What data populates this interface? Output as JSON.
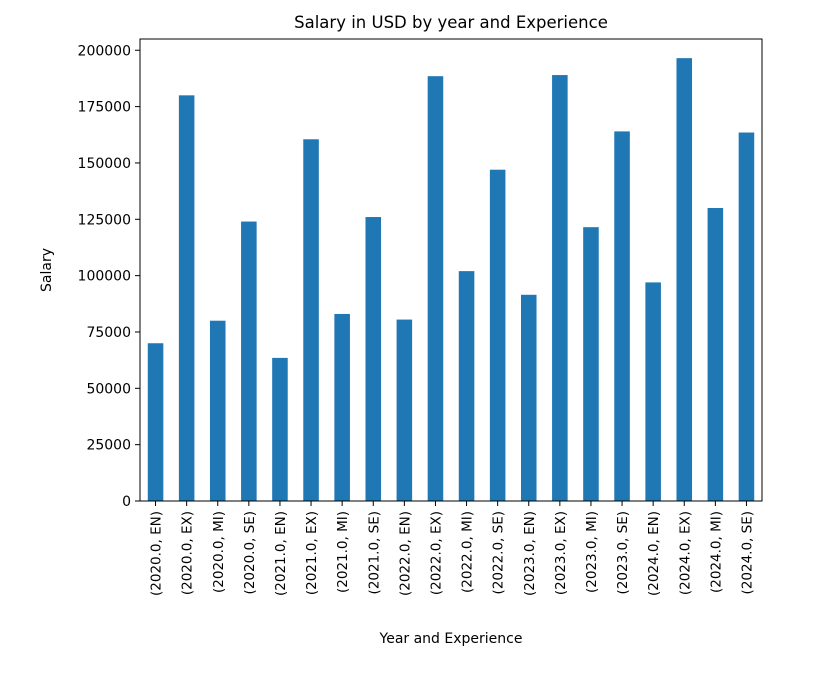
{
  "chart_data": {
    "type": "bar",
    "title": "Salary in USD by year and Experience",
    "xlabel": "Year and Experience",
    "ylabel": "Salary",
    "ylim": [
      0,
      205000
    ],
    "yticks": [
      0,
      25000,
      50000,
      75000,
      100000,
      125000,
      150000,
      175000,
      200000
    ],
    "ytick_labels": [
      "0",
      "25000",
      "50000",
      "75000",
      "100000",
      "125000",
      "150000",
      "175000",
      "200000"
    ],
    "grid": false,
    "legend": "none",
    "bar_color": "#1f77b4",
    "categories": [
      "(2020.0, EN)",
      "(2020.0, EX)",
      "(2020.0, MI)",
      "(2020.0, SE)",
      "(2021.0, EN)",
      "(2021.0, EX)",
      "(2021.0, MI)",
      "(2021.0, SE)",
      "(2022.0, EN)",
      "(2022.0, EX)",
      "(2022.0, MI)",
      "(2022.0, SE)",
      "(2023.0, EN)",
      "(2023.0, EX)",
      "(2023.0, MI)",
      "(2023.0, SE)",
      "(2024.0, EN)",
      "(2024.0, EX)",
      "(2024.0, MI)",
      "(2024.0, SE)"
    ],
    "values": [
      70000,
      180000,
      80000,
      124000,
      63500,
      160500,
      83000,
      126000,
      80500,
      188500,
      102000,
      147000,
      91500,
      189000,
      121500,
      164000,
      97000,
      196500,
      130000,
      163500
    ]
  }
}
